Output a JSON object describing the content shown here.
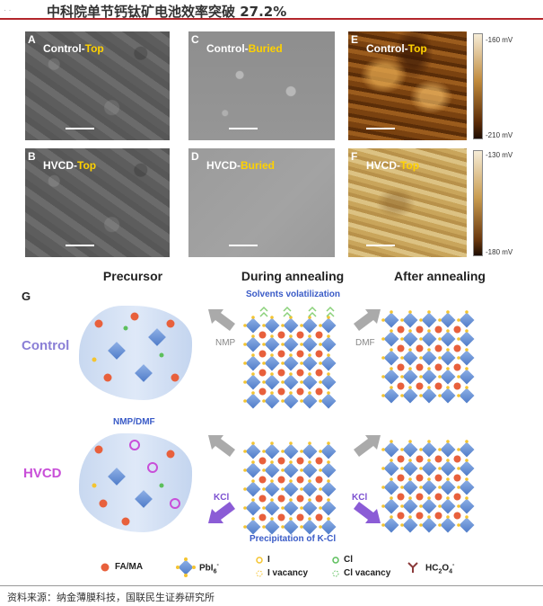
{
  "header": {
    "title": "中科院单节钙钛矿电池效率突破 27.2%"
  },
  "panels": [
    {
      "letter": "A",
      "prefix": "Control-",
      "highlight": "Top"
    },
    {
      "letter": "C",
      "prefix": "Control-",
      "highlight": "Buried"
    },
    {
      "letter": "E",
      "prefix": "Control-",
      "highlight": "Top"
    },
    {
      "letter": "B",
      "prefix": "HVCD-",
      "highlight": "Top"
    },
    {
      "letter": "D",
      "prefix": "HVCD-",
      "highlight": "Buried"
    },
    {
      "letter": "F",
      "prefix": "HVCD-",
      "highlight": "Top"
    }
  ],
  "colorbars": {
    "top": {
      "max": "-160 mV",
      "min": "-210 mV"
    },
    "bottom": {
      "max": "-130 mV",
      "min": "-180 mV"
    }
  },
  "schematic": {
    "panel_letter": "G",
    "stages": [
      "Precursor",
      "During annealing",
      "After annealing"
    ],
    "rows": [
      "Control",
      "HVCD"
    ],
    "solvents_label": "Solvents volatilization",
    "nmp_dmf_label": "NMP/DMF",
    "nmp_label": "NMP",
    "dmf_label": "DMF",
    "kcl_label": "KCl",
    "precipitation_label": "Precipitation of K-Cl"
  },
  "legend": {
    "fama": "FA/MA",
    "pbi6": "PbI",
    "pbi6_sub": "6",
    "pbi6_sup": "-",
    "i": "I",
    "cl": "Cl",
    "i_vacancy": "I vacancy",
    "cl_vacancy": "Cl vacancy",
    "hc2o4": "HC",
    "hc2o4_sub1": "2",
    "hc2o4_o": "O",
    "hc2o4_sub2": "4",
    "hc2o4_sup": "-"
  },
  "source": "资料来源：纳金薄膜科技，国联民生证券研究所",
  "colors": {
    "accent_red": "#b3262b",
    "label_blue": "#3a5bc7",
    "control_purple": "#8a7fd6",
    "hvcd_magenta": "#c84fd8",
    "highlight_yellow": "#ffd200"
  }
}
